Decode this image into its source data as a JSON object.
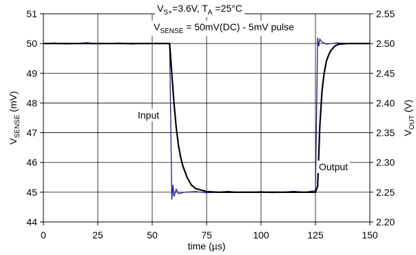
{
  "chart_data": {
    "type": "line",
    "xlabel": "time (µs)",
    "ylabel": [
      "V",
      "SENSE",
      " (mV)"
    ],
    "y2label": [
      "V",
      "OUT",
      " (V)"
    ],
    "annotations": [
      [
        "V",
        "S+",
        "=3.6V, T",
        "A",
        " =25°C"
      ],
      [
        "V",
        "SENSE",
        " = 50mV(DC) - 5mV pulse"
      ],
      [
        "Input"
      ],
      [
        "Output"
      ]
    ],
    "xlim": [
      0,
      150
    ],
    "xticks": [
      0,
      25,
      50,
      75,
      100,
      125,
      150
    ],
    "ylim": [
      44,
      51
    ],
    "yticks": [
      44,
      45,
      46,
      47,
      48,
      49,
      50,
      51
    ],
    "y2lim": [
      2.2,
      2.55
    ],
    "y2ticks": [
      {
        "value": 2.2,
        "label": "2.20"
      },
      2.25,
      {
        "value": 2.3,
        "label": "2.30"
      },
      2.35,
      {
        "value": 2.4,
        "label": "2.40"
      },
      2.45,
      {
        "value": 2.5,
        "label": "2.50"
      },
      2.55
    ],
    "grid": true,
    "series": [
      {
        "color": "#1a1a8c",
        "x": [
          0,
          5,
          10,
          15,
          20,
          25,
          30,
          35,
          40,
          45,
          50,
          55,
          58,
          58.5,
          59,
          59.5,
          60,
          61,
          62,
          65,
          70,
          75,
          80,
          85,
          90,
          95,
          100,
          105,
          110,
          115,
          120,
          125,
          125.5,
          126,
          126.5,
          127,
          128,
          130,
          135,
          140,
          145,
          150
        ],
        "values": [
          50,
          50.02,
          49.98,
          50,
          50.03,
          49.99,
          50,
          50.02,
          49.98,
          50,
          50.01,
          50,
          50,
          47.5,
          44.75,
          45.25,
          44.85,
          45.1,
          44.95,
          45,
          45.02,
          44.98,
          45,
          45.03,
          44.99,
          45,
          45.02,
          44.98,
          45,
          45.03,
          45,
          45.05,
          47.5,
          50.2,
          49.9,
          50.15,
          50.05,
          49.98,
          50.02,
          50,
          49.99,
          50
        ]
      },
      {
        "color": "#000000",
        "axis": "y2",
        "x": [
          0,
          10,
          20,
          30,
          40,
          50,
          58,
          59,
          60,
          61,
          62,
          63,
          64,
          66,
          68,
          70,
          75,
          80,
          90,
          100,
          110,
          120,
          125,
          126,
          127,
          128,
          129,
          130,
          131,
          132,
          134,
          136,
          140,
          150
        ],
        "values": [
          2.5,
          2.5,
          2.5,
          2.5,
          2.5,
          2.5,
          2.5,
          2.45,
          2.4,
          2.36,
          2.33,
          2.31,
          2.295,
          2.275,
          2.262,
          2.256,
          2.251,
          2.25,
          2.25,
          2.25,
          2.25,
          2.25,
          2.25,
          2.26,
          2.36,
          2.42,
          2.45,
          2.47,
          2.48,
          2.488,
          2.496,
          2.499,
          2.5,
          2.5
        ]
      }
    ]
  }
}
